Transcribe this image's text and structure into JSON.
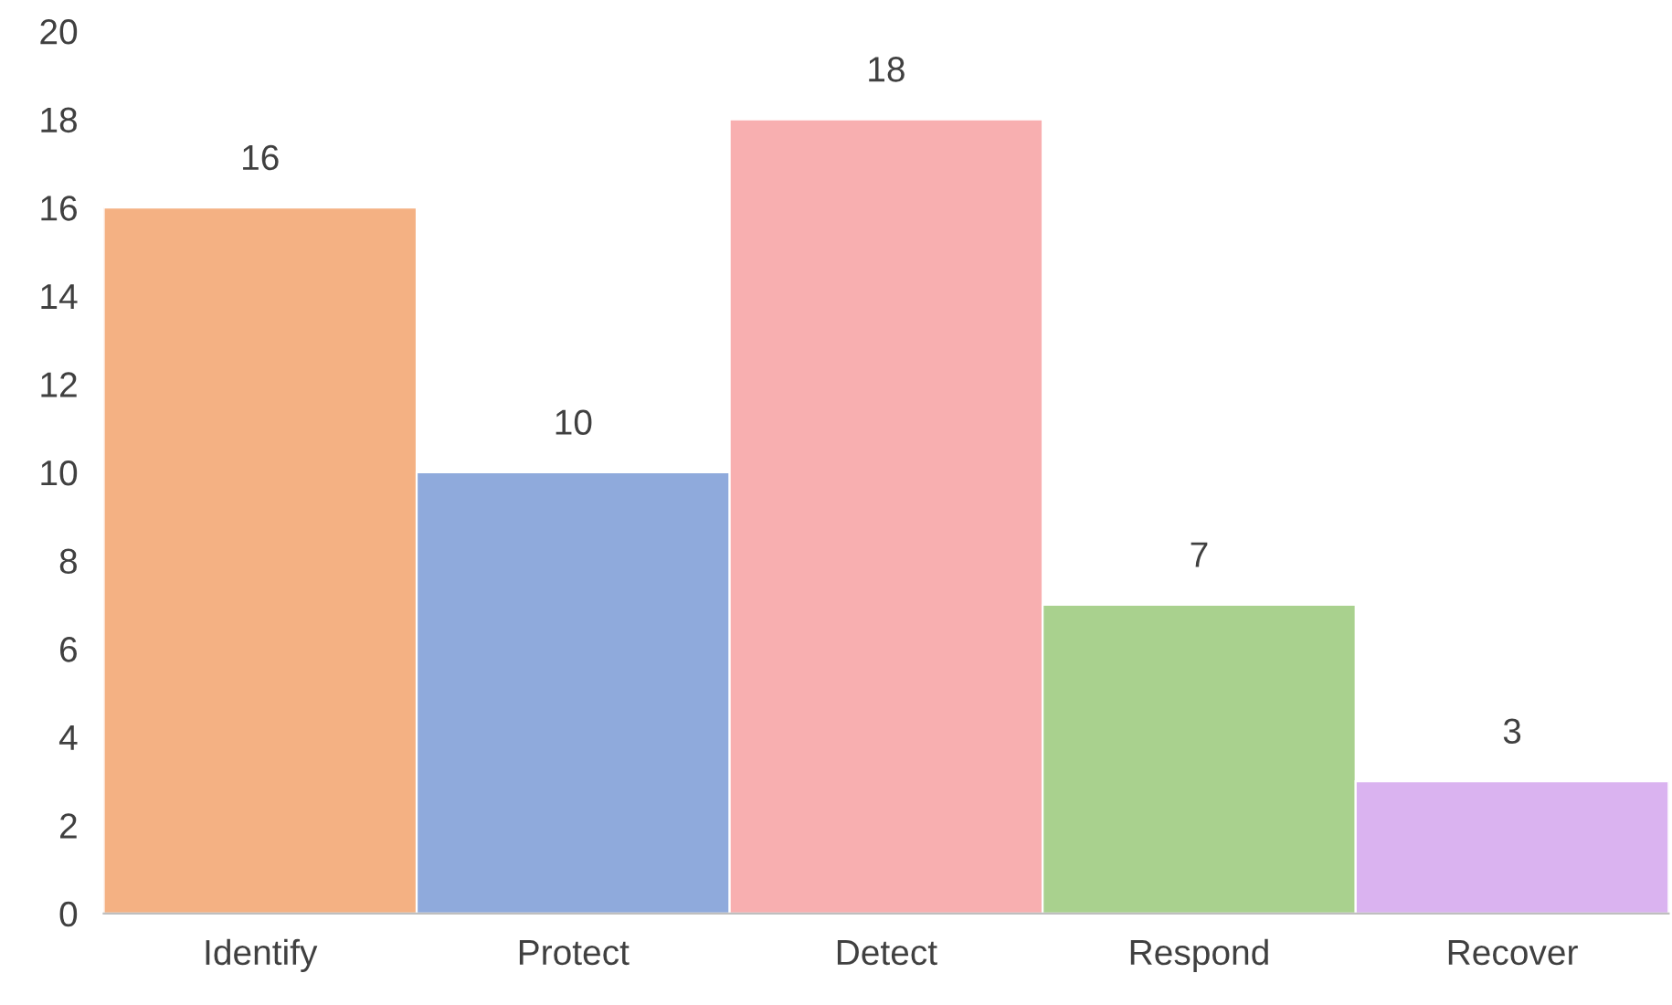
{
  "chart_data": {
    "type": "bar",
    "categories": [
      "Identify",
      "Protect",
      "Detect",
      "Respond",
      "Recover"
    ],
    "values": [
      16,
      10,
      18,
      7,
      3
    ],
    "colors": [
      "#f4b183",
      "#8faadc",
      "#f8afb0",
      "#a9d18e",
      "#dab3f0"
    ],
    "ylim": [
      0,
      20
    ],
    "yticks": [
      0,
      2,
      4,
      6,
      8,
      10,
      12,
      14,
      16,
      18,
      20
    ],
    "data_labels": true,
    "grid": false,
    "legend": false
  }
}
